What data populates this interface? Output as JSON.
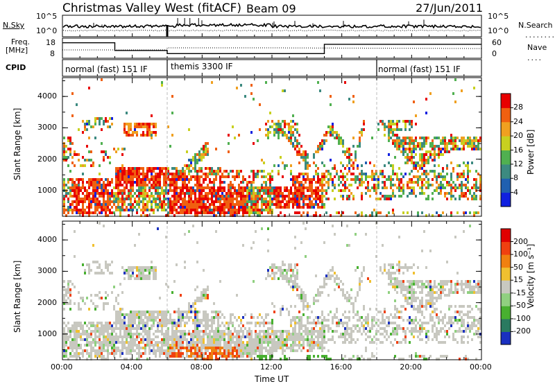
{
  "header": {
    "title": "Christmas Valley West (fitACF)",
    "beam": "Beam 09",
    "date": "27/Jun/2011"
  },
  "status_panel": {
    "nsky_label": "N.Sky",
    "nsearch_label": "N.Search",
    "nsky_ticks": [
      "10^5",
      "10^0"
    ],
    "nsearch_ticks": [
      "10^5",
      "10^0"
    ],
    "freq_label_line1": "Freq.",
    "freq_label_line2": "[MHz]",
    "freq_ticks": [
      "18",
      "8"
    ],
    "nave_label": "Nave",
    "nave_ticks": [
      "60",
      "0"
    ],
    "cpid_label": "CPID",
    "cpid_segments": [
      {
        "label": "normal (fast) 151 IF",
        "start_h": 0,
        "end_h": 6
      },
      {
        "label": "themis 3300 IF",
        "start_h": 6,
        "end_h": 18
      },
      {
        "label": "normal (fast) 151 IF",
        "start_h": 18,
        "end_h": 24
      }
    ]
  },
  "chart_data": [
    {
      "type": "heatmap",
      "name": "power",
      "ylabel": "Slant Range [km]",
      "xlabel": "Time UT",
      "x_ticks": [
        "00:00",
        "04:00",
        "08:00",
        "12:00",
        "16:00",
        "20:00",
        "00:00"
      ],
      "xlim_hours": [
        0,
        24
      ],
      "y_ticks": [
        1000,
        2000,
        3000,
        4000
      ],
      "ylim_km": [
        180,
        4600
      ],
      "colorbar": {
        "label": "Power [dB]",
        "ticks": [
          4,
          8,
          12,
          16,
          20,
          24,
          28
        ],
        "colors": [
          "#1020e0",
          "#2060b0",
          "#3c8a80",
          "#50b050",
          "#c8d020",
          "#f0a020",
          "#f06010",
          "#e80000"
        ]
      }
    },
    {
      "type": "heatmap",
      "name": "velocity",
      "ylabel": "Slant Range [km]",
      "xlabel": "Time UT",
      "x_ticks": [
        "00:00",
        "04:00",
        "08:00",
        "12:00",
        "16:00",
        "20:00",
        "00:00"
      ],
      "xlim_hours": [
        0,
        24
      ],
      "y_ticks": [
        1000,
        2000,
        3000,
        4000
      ],
      "ylim_km": [
        180,
        4600
      ],
      "colorbar": {
        "label": "Velocity [m s⁻¹]",
        "ticks": [
          200,
          100,
          50,
          15,
          -15,
          -50,
          -100,
          -200
        ],
        "colors": [
          "#1a30c0",
          "#2a7a60",
          "#48b030",
          "#90d080",
          "#c8c8c0",
          "#f0c030",
          "#f08010",
          "#f04010",
          "#e00000"
        ]
      }
    }
  ],
  "xaxis_title": "Time UT"
}
